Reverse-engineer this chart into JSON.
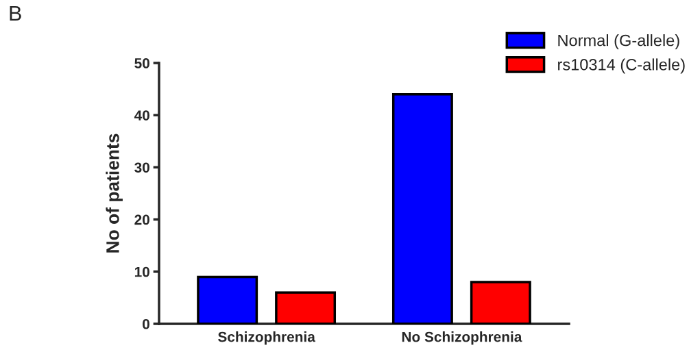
{
  "chart_data": {
    "type": "bar",
    "ylabel": "No of patients",
    "categories": [
      "Schizophrenia",
      "No Schizophrenia"
    ],
    "series": [
      {
        "name": "Normal (G-allele)",
        "color": "#0000ff",
        "values": [
          9,
          44
        ]
      },
      {
        "name": "rs10314 (C-allele)",
        "color": "#ff0000",
        "values": [
          6,
          8
        ]
      }
    ],
    "ylim": [
      0,
      50
    ],
    "yticks": [
      0,
      10,
      20,
      30,
      40,
      50
    ],
    "grid": false,
    "legend": "top right",
    "annotations": [
      "B"
    ]
  }
}
